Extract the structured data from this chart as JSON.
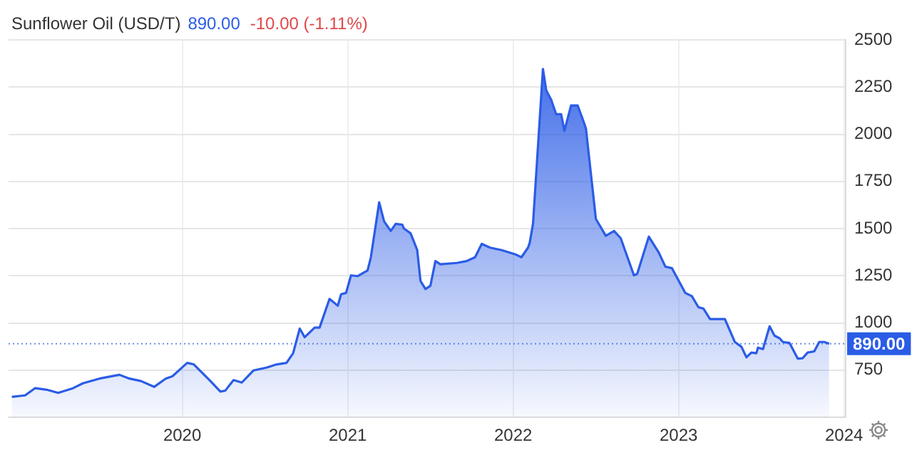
{
  "chart_data": {
    "type": "area",
    "title": "Sunflower Oil (USD/T)",
    "annotations": [
      "890.00",
      "-10.00 (-1.11%)"
    ],
    "color": "#2b5ce6",
    "grid": true,
    "x": [
      2018.97,
      2019.05,
      2019.11,
      2019.18,
      2019.25,
      2019.34,
      2019.4,
      2019.5,
      2019.62,
      2019.68,
      2019.75,
      2019.83,
      2019.9,
      2019.94,
      2020.03,
      2020.07,
      2020.17,
      2020.23,
      2020.26,
      2020.31,
      2020.36,
      2020.43,
      2020.51,
      2020.57,
      2020.63,
      2020.67,
      2020.71,
      2020.74,
      2020.8,
      2020.83,
      2020.89,
      2020.94,
      2020.96,
      2020.99,
      2021.02,
      2021.06,
      2021.12,
      2021.14,
      2021.19,
      2021.22,
      2021.26,
      2021.29,
      2021.33,
      2021.34,
      2021.38,
      2021.42,
      2021.44,
      2021.47,
      2021.5,
      2021.53,
      2021.56,
      2021.66,
      2021.72,
      2021.77,
      2021.81,
      2021.86,
      2021.93,
      2022.02,
      2022.05,
      2022.09,
      2022.1,
      2022.12,
      2022.18,
      2022.2,
      2022.23,
      2022.26,
      2022.29,
      2022.31,
      2022.35,
      2022.39,
      2022.42,
      2022.44,
      2022.5,
      2022.56,
      2022.61,
      2022.65,
      2022.73,
      2022.75,
      2022.82,
      2022.88,
      2022.92,
      2022.96,
      2023.04,
      2023.08,
      2023.12,
      2023.15,
      2023.19,
      2023.28,
      2023.34,
      2023.38,
      2023.41,
      2023.44,
      2023.47,
      2023.48,
      2023.51,
      2023.55,
      2023.58,
      2023.61,
      2023.63,
      2023.67,
      2023.72,
      2023.75,
      2023.78,
      2023.82,
      2023.85,
      2023.88,
      2023.91
    ],
    "values": [
      608,
      616,
      654,
      646,
      629,
      654,
      680,
      705,
      725,
      705,
      692,
      661,
      705,
      717,
      788,
      780,
      692,
      636,
      641,
      697,
      684,
      748,
      763,
      780,
      788,
      839,
      970,
      924,
      975,
      975,
      1127,
      1091,
      1152,
      1159,
      1252,
      1248,
      1278,
      1348,
      1639,
      1538,
      1487,
      1525,
      1520,
      1500,
      1475,
      1386,
      1222,
      1180,
      1197,
      1328,
      1311,
      1318,
      1328,
      1348,
      1419,
      1399,
      1386,
      1361,
      1348,
      1399,
      1424,
      1525,
      2346,
      2232,
      2182,
      2106,
      2106,
      2018,
      2152,
      2152,
      2081,
      2030,
      1551,
      1462,
      1487,
      1449,
      1252,
      1260,
      1457,
      1373,
      1298,
      1290,
      1159,
      1142,
      1083,
      1076,
      1020,
      1020,
      899,
      873,
      818,
      843,
      839,
      869,
      861,
      982,
      932,
      919,
      899,
      894,
      811,
      813,
      843,
      849,
      899,
      899,
      890
    ],
    "xlim": [
      2018.95,
      2024.01
    ],
    "xticks": [
      2020,
      2021,
      2022,
      2023,
      2024
    ],
    "ylim": [
      500,
      2500
    ],
    "yticks": [
      750,
      1000,
      1250,
      1500,
      1750,
      2000,
      2250,
      2500
    ],
    "ref_lines": [
      {
        "axis": "y",
        "value": 890,
        "label": "890.00",
        "color": "#2b5ce6",
        "line_style": "dotted"
      }
    ]
  }
}
